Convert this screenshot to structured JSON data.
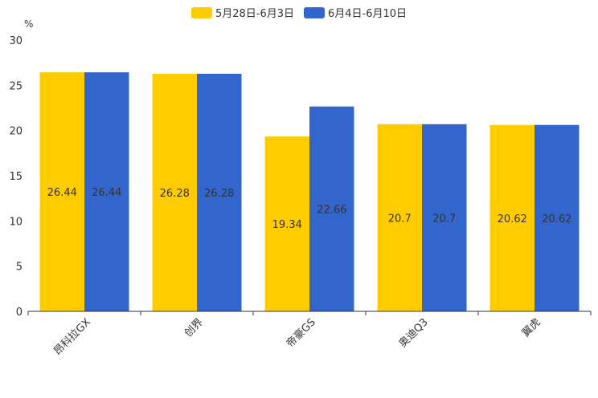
{
  "chart_data": {
    "type": "bar",
    "title": "",
    "ylabel": "%",
    "xlabel": "",
    "ylim": [
      0,
      30
    ],
    "yticks": [
      "0",
      "5",
      "10",
      "15",
      "20",
      "25",
      "30"
    ],
    "categories": [
      "昂科拉GX",
      "创界",
      "帝豪GS",
      "奥迪Q3",
      "翼虎"
    ],
    "series": [
      {
        "name": "5月28日-6月3日",
        "color": "#FFCC00",
        "values": [
          26.44,
          26.28,
          19.34,
          20.7,
          20.62
        ],
        "labels": [
          "26.44",
          "26.28",
          "19.34",
          "20.7",
          "20.62"
        ]
      },
      {
        "name": "6月4日-6月10日",
        "color": "#3366CC",
        "values": [
          26.44,
          26.28,
          22.66,
          20.7,
          20.62
        ],
        "labels": [
          "26.44",
          "26.28",
          "22.66",
          "20.7",
          "20.62"
        ]
      }
    ],
    "legend_position": "top-center"
  }
}
